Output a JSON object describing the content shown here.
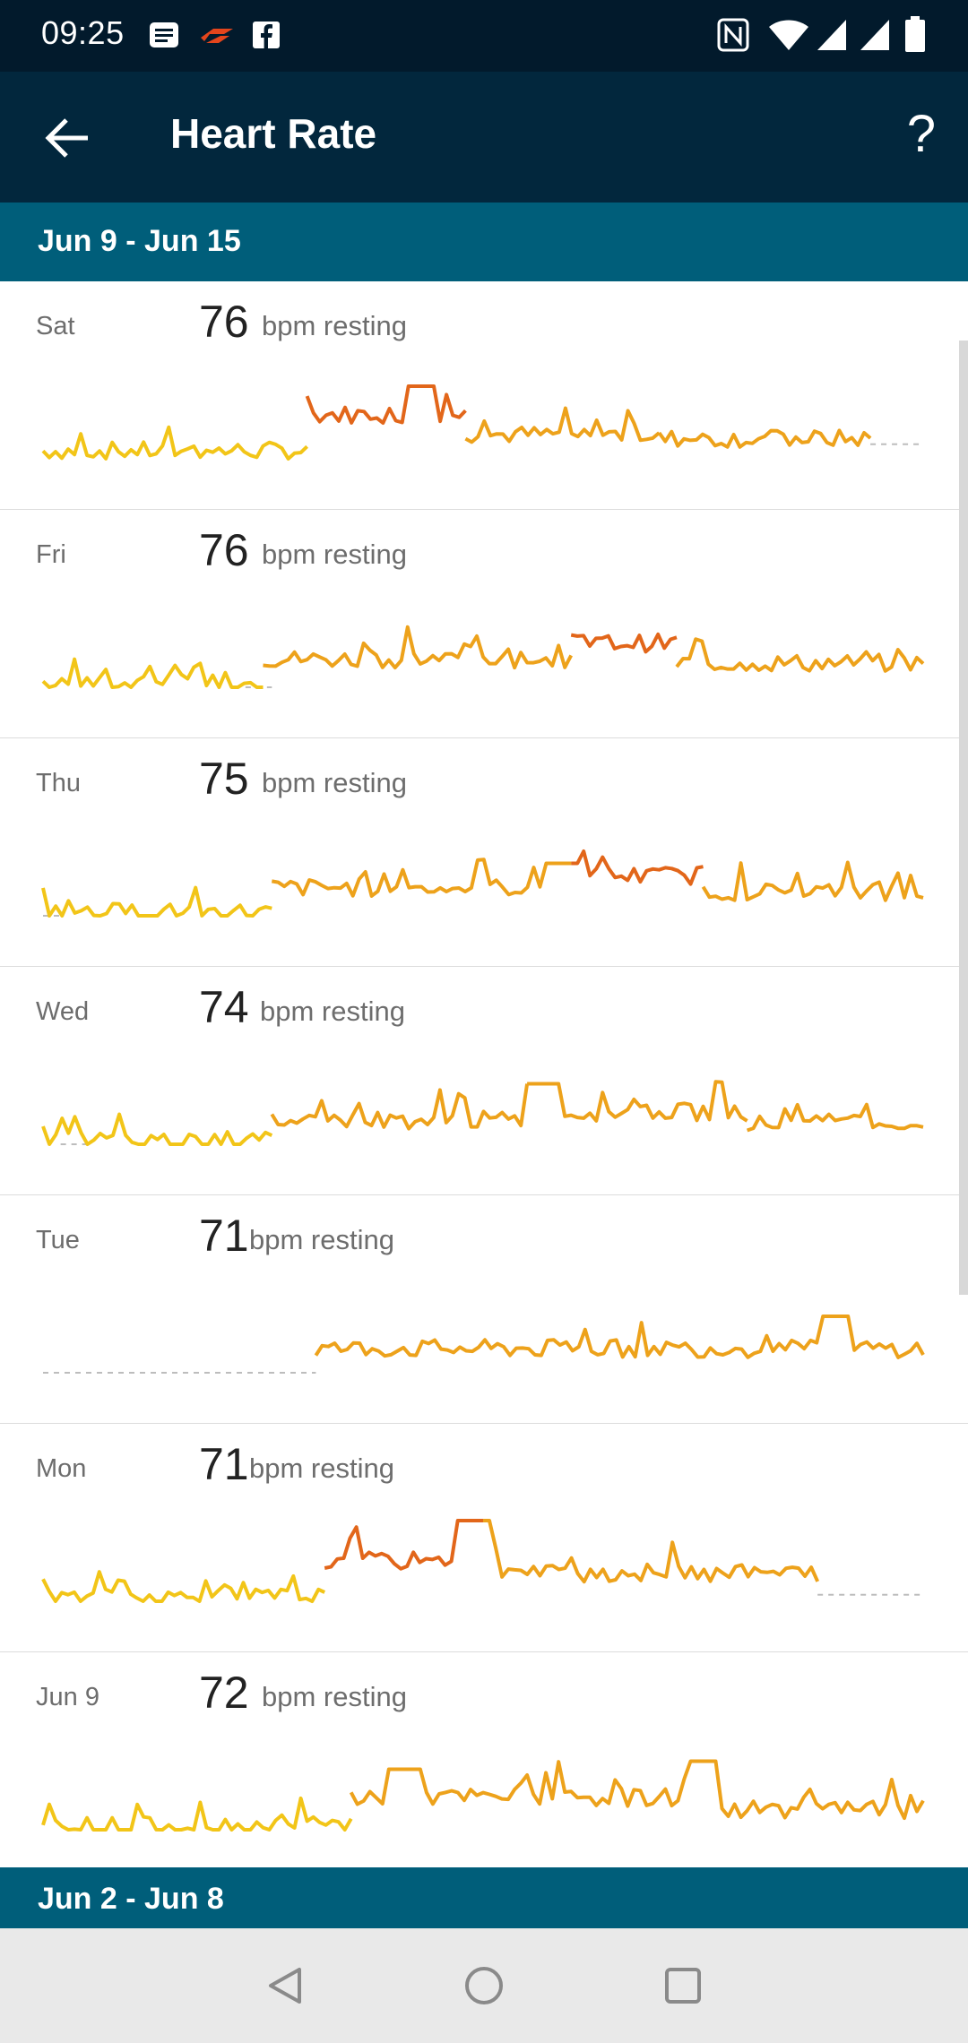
{
  "status_bar": {
    "time": "09:25",
    "left_icons": [
      "news-icon",
      "strava-icon",
      "facebook-icon"
    ],
    "right_icons": [
      "nfc-icon",
      "wifi-icon",
      "signal-icon",
      "signal-icon",
      "battery-icon"
    ]
  },
  "app_bar": {
    "title": "Heart Rate",
    "back_icon": "arrow-left-icon",
    "help_label": "?"
  },
  "weeks": [
    {
      "label": "Jun 9 - Jun 15"
    },
    {
      "label": "Jun 2 - Jun 8"
    }
  ],
  "days": [
    {
      "day": "Sat",
      "bpm": "76",
      "unit": "bpm resting"
    },
    {
      "day": "Fri",
      "bpm": "76",
      "unit": "bpm resting"
    },
    {
      "day": "Thu",
      "bpm": "75",
      "unit": "bpm resting"
    },
    {
      "day": "Wed",
      "bpm": "74",
      "unit": "bpm resting"
    },
    {
      "day": "Tue",
      "bpm": "71",
      "unit": "bpm resting"
    },
    {
      "day": "Mon",
      "bpm": "71",
      "unit": "bpm resting"
    },
    {
      "day": "Jun 9",
      "bpm": "72",
      "unit": "bpm resting"
    }
  ],
  "nav_bar": {
    "icons": [
      "back-triangle-icon",
      "home-circle-icon",
      "recents-square-icon"
    ]
  },
  "colors": {
    "status_bar": "#021a2c",
    "app_bar": "#02273d",
    "week_header": "#005e7a",
    "line_low": "#f2c518",
    "line_high": "#e2661a"
  }
}
